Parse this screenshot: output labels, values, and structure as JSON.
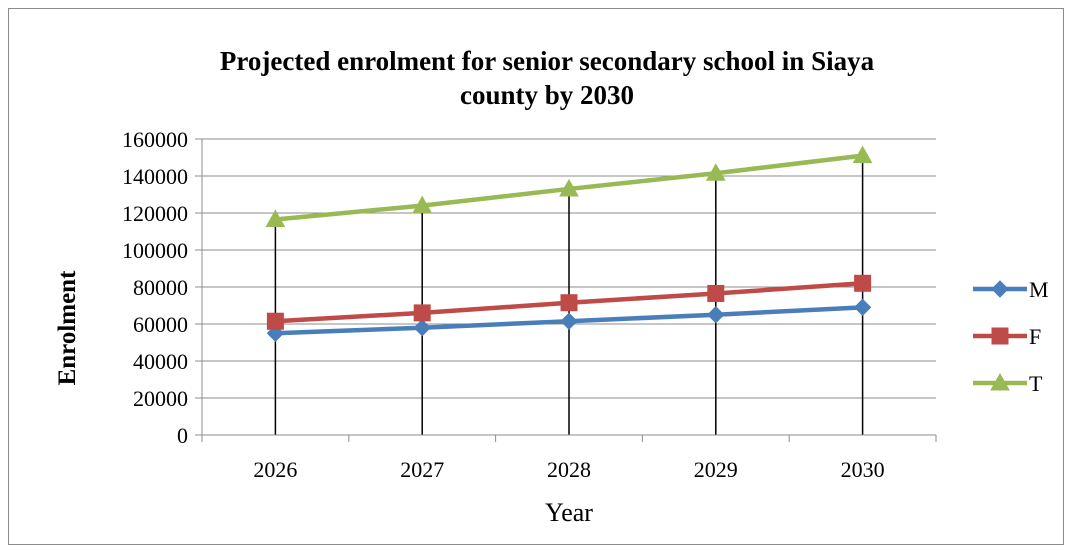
{
  "chart_data": {
    "type": "line",
    "title": "Projected enrolment for senior secondary school in Siaya county by 2030",
    "title_lines": [
      "Projected enrolment for senior secondary school in Siaya",
      "county by 2030"
    ],
    "xlabel": "Year",
    "ylabel": "Enrolment",
    "categories": [
      "2026",
      "2027",
      "2028",
      "2029",
      "2030"
    ],
    "ylim": [
      0,
      160000
    ],
    "yticks": [
      "0",
      "20000",
      "40000",
      "60000",
      "80000",
      "100000",
      "120000",
      "140000",
      "160000"
    ],
    "grid": "horizontal major gridlines",
    "drop_lines": true,
    "legend_position": "right",
    "series": [
      {
        "name": "M",
        "values": [
          55000,
          58000,
          61500,
          65000,
          69000
        ],
        "color": "#4a7ebb",
        "marker": "diamond"
      },
      {
        "name": "F",
        "values": [
          61500,
          66000,
          71500,
          76500,
          82000
        ],
        "color": "#be4b48",
        "marker": "square"
      },
      {
        "name": "T",
        "values": [
          116500,
          124000,
          133000,
          141500,
          151000
        ],
        "color": "#98b954",
        "marker": "triangle"
      }
    ]
  }
}
